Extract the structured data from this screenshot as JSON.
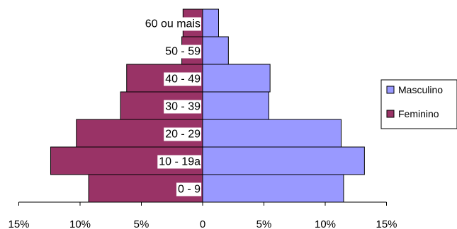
{
  "chart_data": {
    "type": "bar",
    "orientation": "horizontal",
    "layout": "population-pyramid",
    "categories": [
      "0 - 9",
      "10 - 19a",
      "20 - 29",
      "30 - 39",
      "40 - 49",
      "50 - 59",
      "60 ou mais"
    ],
    "series": [
      {
        "name": "Masculino",
        "color": "#9999ff",
        "side": "right",
        "values": [
          11.5,
          13.2,
          11.3,
          5.4,
          5.5,
          2.1,
          1.3
        ]
      },
      {
        "name": "Feminino",
        "color": "#993366",
        "side": "left",
        "values": [
          9.3,
          12.4,
          10.3,
          6.7,
          6.2,
          1.7,
          1.6
        ]
      }
    ],
    "x_ticks": [
      "15%",
      "10%",
      "5%",
      "0",
      "5%",
      "10%",
      "15%"
    ],
    "xlim": [
      -15,
      15
    ],
    "legend_position": "right",
    "grid": false
  }
}
